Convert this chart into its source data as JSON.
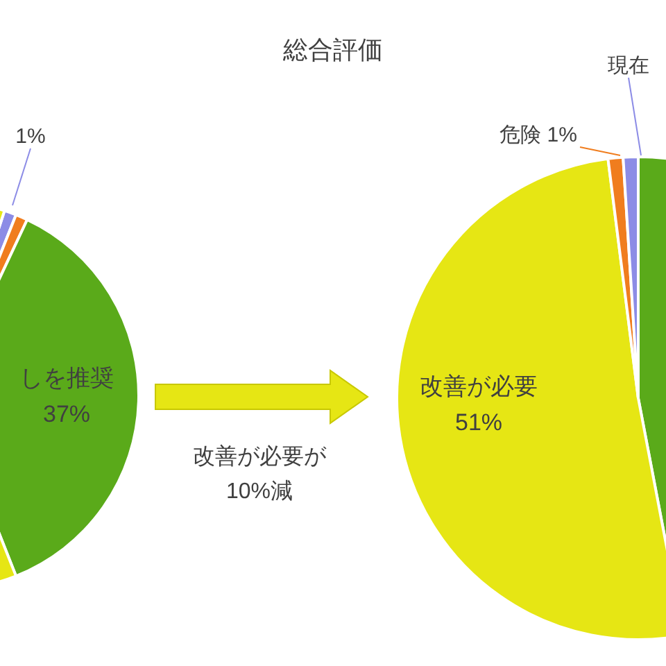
{
  "chart_data": [
    {
      "type": "pie",
      "title": "総合評価",
      "categories": [
        null,
        null,
        "しを推奨",
        null
      ],
      "values": [
        1,
        1,
        37,
        61
      ],
      "colors": [
        "#8c8ce6",
        "#f07d1e",
        "#5aaa1a",
        "#e6e614"
      ],
      "value_labels": [
        "1%",
        null,
        "37%",
        null
      ],
      "annotations": [
        "改善が必要が",
        "10%減"
      ]
    },
    {
      "type": "pie",
      "categories": [
        null,
        "改善が必要",
        "危険",
        "現在"
      ],
      "values": [
        47,
        51,
        1,
        1
      ],
      "colors": [
        "#5aaa1a",
        "#e6e614",
        "#f07d1e",
        "#8c8ce6"
      ],
      "value_labels": [
        null,
        "51%",
        "1%",
        null
      ]
    }
  ]
}
